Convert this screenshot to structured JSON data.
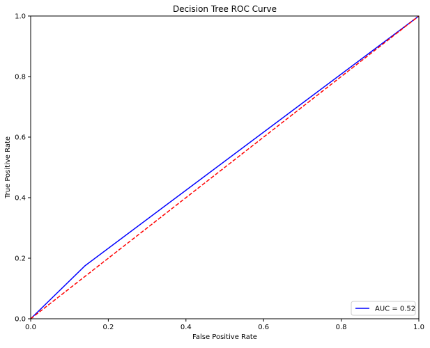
{
  "chart_data": {
    "type": "line",
    "title": "Decision Tree ROC Curve",
    "xlabel": "False Positive Rate",
    "ylabel": "True Positive Rate",
    "xlim": [
      0,
      1
    ],
    "ylim": [
      0,
      1
    ],
    "x_ticks": [
      "0.0",
      "0.2",
      "0.4",
      "0.6",
      "0.8",
      "1.0"
    ],
    "y_ticks": [
      "0.0",
      "0.2",
      "0.4",
      "0.6",
      "0.8",
      "1.0"
    ],
    "grid": false,
    "legend_position": "lower-right",
    "series": [
      {
        "name": "AUC = 0.52",
        "color": "#0000ff",
        "style": "solid",
        "x": [
          0.0,
          0.14,
          1.0
        ],
        "y": [
          0.0,
          0.175,
          1.0
        ]
      },
      {
        "color": "#ff0000",
        "style": "dashed",
        "x": [
          0.0,
          1.0
        ],
        "y": [
          0.0,
          1.0
        ]
      }
    ]
  }
}
